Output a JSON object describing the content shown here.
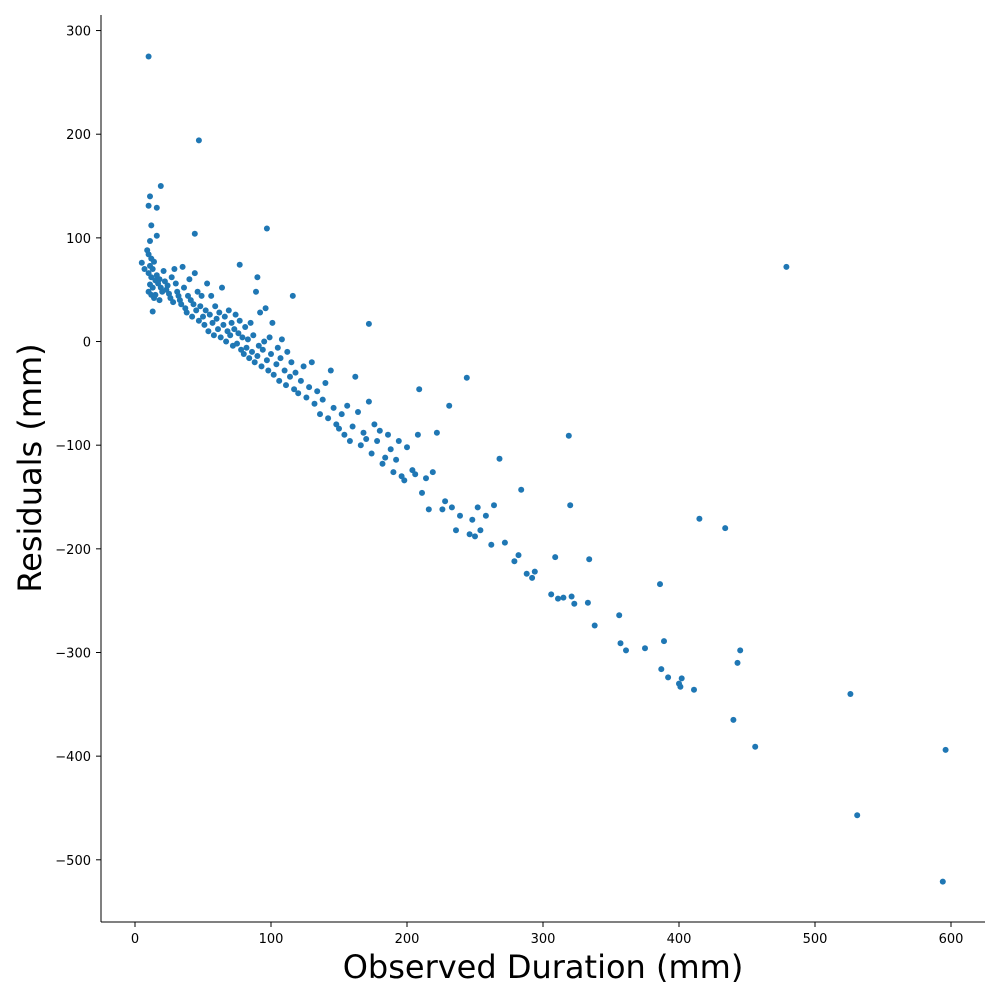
{
  "chart_data": {
    "type": "scatter",
    "title": "",
    "xlabel": "Observed Duration (mm)",
    "ylabel": "Residuals (mm)",
    "xlim": [
      -25,
      625
    ],
    "ylim": [
      -560,
      315
    ],
    "xticks": [
      0,
      100,
      200,
      300,
      400,
      500,
      600
    ],
    "yticks": [
      300,
      200,
      100,
      0,
      -100,
      -200,
      -300,
      -400,
      -500
    ],
    "xtick_labels": [
      "0",
      "100",
      "200",
      "300",
      "400",
      "500",
      "600"
    ],
    "ytick_labels": [
      "300",
      "200",
      "100",
      "0",
      "−100",
      "−200",
      "−300",
      "−400",
      "−500"
    ],
    "grid": false,
    "point_color": "#1f77b4",
    "series": [
      {
        "points": [
          [
            10,
            275
          ],
          [
            47,
            194
          ],
          [
            19,
            150
          ],
          [
            11,
            140
          ],
          [
            16,
            129
          ],
          [
            10,
            131
          ],
          [
            97,
            109
          ],
          [
            44,
            104
          ],
          [
            16,
            102
          ],
          [
            12,
            112
          ],
          [
            11,
            97
          ],
          [
            5,
            76
          ],
          [
            7,
            70
          ],
          [
            77,
            74
          ],
          [
            90,
            62
          ],
          [
            116,
            44
          ],
          [
            13,
            29
          ],
          [
            9,
            88
          ],
          [
            10,
            84
          ],
          [
            12,
            80
          ],
          [
            14,
            77
          ],
          [
            11,
            73
          ],
          [
            13,
            70
          ],
          [
            10,
            66
          ],
          [
            12,
            62
          ],
          [
            15,
            59
          ],
          [
            11,
            55
          ],
          [
            13,
            52
          ],
          [
            10,
            48
          ],
          [
            12,
            45
          ],
          [
            14,
            42
          ],
          [
            16,
            64
          ],
          [
            18,
            60
          ],
          [
            17,
            56
          ],
          [
            19,
            52
          ],
          [
            20,
            48
          ],
          [
            15,
            45
          ],
          [
            18,
            40
          ],
          [
            21,
            68
          ],
          [
            22,
            58
          ],
          [
            24,
            54
          ],
          [
            23,
            50
          ],
          [
            25,
            46
          ],
          [
            26,
            42
          ],
          [
            28,
            38
          ],
          [
            27,
            62
          ],
          [
            29,
            70
          ],
          [
            30,
            56
          ],
          [
            31,
            48
          ],
          [
            32,
            44
          ],
          [
            33,
            40
          ],
          [
            34,
            36
          ],
          [
            35,
            72
          ],
          [
            36,
            52
          ],
          [
            37,
            32
          ],
          [
            38,
            28
          ],
          [
            39,
            44
          ],
          [
            40,
            60
          ],
          [
            41,
            40
          ],
          [
            42,
            24
          ],
          [
            43,
            36
          ],
          [
            44,
            66
          ],
          [
            45,
            30
          ],
          [
            46,
            48
          ],
          [
            47,
            20
          ],
          [
            48,
            34
          ],
          [
            49,
            44
          ],
          [
            50,
            24
          ],
          [
            51,
            16
          ],
          [
            52,
            30
          ],
          [
            53,
            56
          ],
          [
            54,
            10
          ],
          [
            55,
            26
          ],
          [
            56,
            44
          ],
          [
            57,
            18
          ],
          [
            58,
            6
          ],
          [
            59,
            34
          ],
          [
            60,
            22
          ],
          [
            61,
            12
          ],
          [
            62,
            28
          ],
          [
            63,
            4
          ],
          [
            64,
            52
          ],
          [
            65,
            16
          ],
          [
            66,
            24
          ],
          [
            67,
            0
          ],
          [
            68,
            10
          ],
          [
            69,
            30
          ],
          [
            70,
            6
          ],
          [
            71,
            18
          ],
          [
            72,
            -4
          ],
          [
            73,
            12
          ],
          [
            74,
            26
          ],
          [
            75,
            -2
          ],
          [
            76,
            8
          ],
          [
            77,
            20
          ],
          [
            78,
            -8
          ],
          [
            79,
            4
          ],
          [
            80,
            -12
          ],
          [
            81,
            14
          ],
          [
            82,
            -6
          ],
          [
            83,
            2
          ],
          [
            84,
            -16
          ],
          [
            85,
            18
          ],
          [
            86,
            -10
          ],
          [
            87,
            6
          ],
          [
            88,
            -20
          ],
          [
            89,
            48
          ],
          [
            90,
            -14
          ],
          [
            91,
            -4
          ],
          [
            92,
            28
          ],
          [
            93,
            -24
          ],
          [
            94,
            -8
          ],
          [
            95,
            0
          ],
          [
            96,
            32
          ],
          [
            97,
            -18
          ],
          [
            98,
            -28
          ],
          [
            99,
            4
          ],
          [
            100,
            -12
          ],
          [
            101,
            18
          ],
          [
            102,
            -32
          ],
          [
            104,
            -22
          ],
          [
            105,
            -6
          ],
          [
            106,
            -38
          ],
          [
            107,
            -16
          ],
          [
            108,
            2
          ],
          [
            110,
            -28
          ],
          [
            111,
            -42
          ],
          [
            112,
            -10
          ],
          [
            114,
            -34
          ],
          [
            115,
            -20
          ],
          [
            117,
            -46
          ],
          [
            118,
            -30
          ],
          [
            120,
            -50
          ],
          [
            122,
            -38
          ],
          [
            124,
            -24
          ],
          [
            126,
            -54
          ],
          [
            128,
            -44
          ],
          [
            130,
            -20
          ],
          [
            132,
            -60
          ],
          [
            134,
            -48
          ],
          [
            136,
            -70
          ],
          [
            138,
            -56
          ],
          [
            140,
            -40
          ],
          [
            142,
            -74
          ],
          [
            144,
            -28
          ],
          [
            146,
            -64
          ],
          [
            148,
            -80
          ],
          [
            150,
            -84
          ],
          [
            152,
            -70
          ],
          [
            154,
            -90
          ],
          [
            156,
            -62
          ],
          [
            158,
            -96
          ],
          [
            160,
            -82
          ],
          [
            162,
            -34
          ],
          [
            164,
            -68
          ],
          [
            166,
            -100
          ],
          [
            168,
            -88
          ],
          [
            170,
            -94
          ],
          [
            172,
            17
          ],
          [
            172,
            -58
          ],
          [
            174,
            -108
          ],
          [
            176,
            -80
          ],
          [
            178,
            -96
          ],
          [
            180,
            -86
          ],
          [
            182,
            -118
          ],
          [
            184,
            -112
          ],
          [
            186,
            -90
          ],
          [
            188,
            -104
          ],
          [
            190,
            -126
          ],
          [
            192,
            -114
          ],
          [
            194,
            -96
          ],
          [
            196,
            -130
          ],
          [
            198,
            -134
          ],
          [
            200,
            -102
          ],
          [
            204,
            -124
          ],
          [
            206,
            -128
          ],
          [
            208,
            -90
          ],
          [
            209,
            -46
          ],
          [
            211,
            -146
          ],
          [
            214,
            -132
          ],
          [
            216,
            -162
          ],
          [
            219,
            -126
          ],
          [
            222,
            -88
          ],
          [
            226,
            -162
          ],
          [
            228,
            -154
          ],
          [
            231,
            -62
          ],
          [
            233,
            -160
          ],
          [
            236,
            -182
          ],
          [
            239,
            -168
          ],
          [
            244,
            -35
          ],
          [
            246,
            -186
          ],
          [
            248,
            -172
          ],
          [
            250,
            -188
          ],
          [
            252,
            -160
          ],
          [
            254,
            -182
          ],
          [
            258,
            -168
          ],
          [
            262,
            -196
          ],
          [
            264,
            -158
          ],
          [
            268,
            -113
          ],
          [
            272,
            -194
          ],
          [
            279,
            -212
          ],
          [
            282,
            -206
          ],
          [
            284,
            -143
          ],
          [
            288,
            -224
          ],
          [
            292,
            -228
          ],
          [
            294,
            -222
          ],
          [
            306,
            -244
          ],
          [
            309,
            -208
          ],
          [
            311,
            -248
          ],
          [
            315,
            -247
          ],
          [
            319,
            -91
          ],
          [
            320,
            -158
          ],
          [
            321,
            -246
          ],
          [
            323,
            -253
          ],
          [
            333,
            -252
          ],
          [
            334,
            -210
          ],
          [
            338,
            -274
          ],
          [
            356,
            -264
          ],
          [
            357,
            -291
          ],
          [
            361,
            -298
          ],
          [
            375,
            -296
          ],
          [
            386,
            -234
          ],
          [
            387,
            -316
          ],
          [
            389,
            -289
          ],
          [
            392,
            -324
          ],
          [
            400,
            -330
          ],
          [
            401,
            -333
          ],
          [
            402,
            -325
          ],
          [
            411,
            -336
          ],
          [
            415,
            -171
          ],
          [
            434,
            -180
          ],
          [
            440,
            -365
          ],
          [
            443,
            -310
          ],
          [
            445,
            -298
          ],
          [
            456,
            -391
          ],
          [
            479,
            72
          ],
          [
            526,
            -340
          ],
          [
            531,
            -457
          ],
          [
            594,
            -521
          ],
          [
            596,
            -394
          ]
        ]
      }
    ]
  }
}
